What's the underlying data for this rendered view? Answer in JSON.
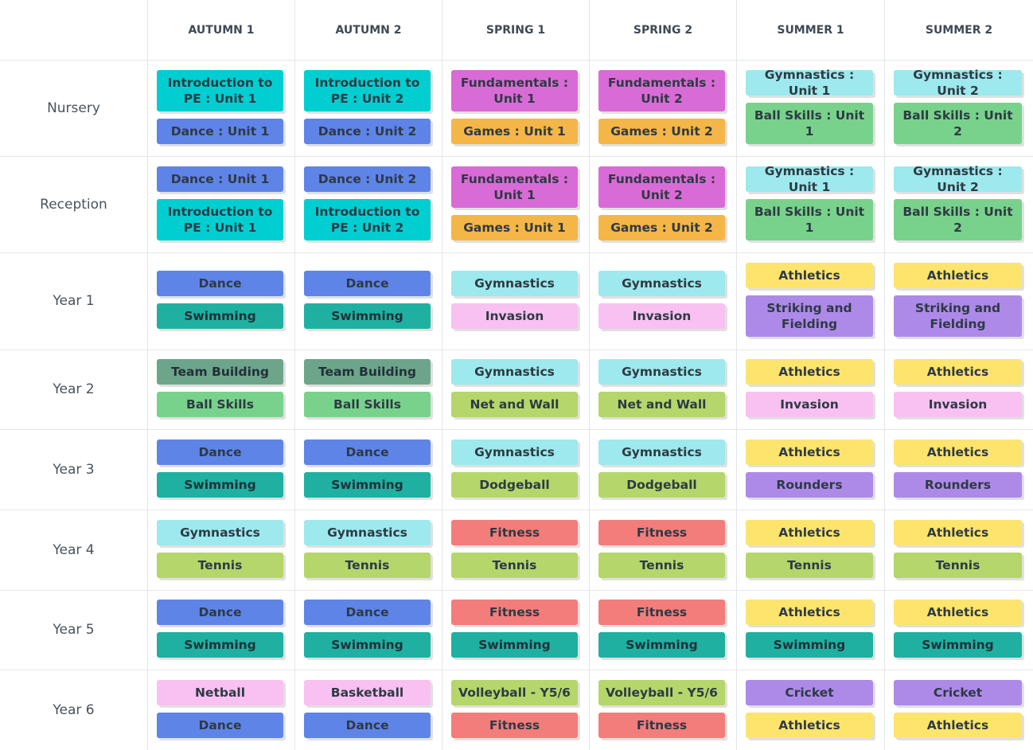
{
  "headers": [
    "AUTUMN 1",
    "AUTUMN 2",
    "SPRING 1",
    "SPRING 2",
    "SUMMER 1",
    "SUMMER 2"
  ],
  "colors": {
    "cyan": "#00ced1",
    "blue": "#5f84e8",
    "magenta": "#d96bd6",
    "orange": "#f4b646",
    "lightcyan": "#9de9ee",
    "green": "#79d28b",
    "teal": "#1fb0a1",
    "pink": "#f8c1f2",
    "yellow": "#fde46c",
    "purple": "#ad8ae8",
    "sage": "#6da58a",
    "lime": "#b5d66a",
    "coral": "#f27d7a"
  },
  "rows": [
    {
      "label": "Nursery",
      "cells": [
        [
          {
            "text": "Introduction to PE : Unit 1",
            "color": "cyan"
          },
          {
            "text": "Dance : Unit 1",
            "color": "blue"
          }
        ],
        [
          {
            "text": "Introduction to PE : Unit 2",
            "color": "cyan"
          },
          {
            "text": "Dance : Unit 2",
            "color": "blue"
          }
        ],
        [
          {
            "text": "Fundamentals : Unit 1",
            "color": "magenta"
          },
          {
            "text": "Games : Unit 1",
            "color": "orange"
          }
        ],
        [
          {
            "text": "Fundamentals : Unit 2",
            "color": "magenta"
          },
          {
            "text": "Games : Unit 2",
            "color": "orange"
          }
        ],
        [
          {
            "text": "Gymnastics : Unit 1",
            "color": "lightcyan"
          },
          {
            "text": "Ball Skills : Unit 1",
            "color": "green"
          }
        ],
        [
          {
            "text": "Gymnastics : Unit 2",
            "color": "lightcyan"
          },
          {
            "text": "Ball Skills : Unit 2",
            "color": "green"
          }
        ]
      ]
    },
    {
      "label": "Reception",
      "cells": [
        [
          {
            "text": "Dance : Unit 1",
            "color": "blue"
          },
          {
            "text": "Introduction to PE : Unit 1",
            "color": "cyan"
          }
        ],
        [
          {
            "text": "Dance : Unit 2",
            "color": "blue"
          },
          {
            "text": "Introduction to PE : Unit 2",
            "color": "cyan"
          }
        ],
        [
          {
            "text": "Fundamentals : Unit 1",
            "color": "magenta"
          },
          {
            "text": "Games : Unit 1",
            "color": "orange"
          }
        ],
        [
          {
            "text": "Fundamentals : Unit 2",
            "color": "magenta"
          },
          {
            "text": "Games : Unit 2",
            "color": "orange"
          }
        ],
        [
          {
            "text": "Gymnastics : Unit 1",
            "color": "lightcyan"
          },
          {
            "text": "Ball Skills : Unit 1",
            "color": "green"
          }
        ],
        [
          {
            "text": "Gymnastics : Unit 2",
            "color": "lightcyan"
          },
          {
            "text": "Ball Skills : Unit 2",
            "color": "green"
          }
        ]
      ]
    },
    {
      "label": "Year 1",
      "cells": [
        [
          {
            "text": "Dance",
            "color": "blue"
          },
          {
            "text": "Swimming",
            "color": "teal"
          }
        ],
        [
          {
            "text": "Dance",
            "color": "blue"
          },
          {
            "text": "Swimming",
            "color": "teal"
          }
        ],
        [
          {
            "text": "Gymnastics",
            "color": "lightcyan"
          },
          {
            "text": "Invasion",
            "color": "pink"
          }
        ],
        [
          {
            "text": "Gymnastics",
            "color": "lightcyan"
          },
          {
            "text": "Invasion",
            "color": "pink"
          }
        ],
        [
          {
            "text": "Athletics",
            "color": "yellow"
          },
          {
            "text": "Striking and Fielding",
            "color": "purple"
          }
        ],
        [
          {
            "text": "Athletics",
            "color": "yellow"
          },
          {
            "text": "Striking and Fielding",
            "color": "purple"
          }
        ]
      ]
    },
    {
      "label": "Year 2",
      "cells": [
        [
          {
            "text": "Team Building",
            "color": "sage"
          },
          {
            "text": "Ball Skills",
            "color": "green"
          }
        ],
        [
          {
            "text": "Team Building",
            "color": "sage"
          },
          {
            "text": "Ball Skills",
            "color": "green"
          }
        ],
        [
          {
            "text": "Gymnastics",
            "color": "lightcyan"
          },
          {
            "text": "Net and Wall",
            "color": "lime"
          }
        ],
        [
          {
            "text": "Gymnastics",
            "color": "lightcyan"
          },
          {
            "text": "Net and Wall",
            "color": "lime"
          }
        ],
        [
          {
            "text": "Athletics",
            "color": "yellow"
          },
          {
            "text": "Invasion",
            "color": "pink"
          }
        ],
        [
          {
            "text": "Athletics",
            "color": "yellow"
          },
          {
            "text": "Invasion",
            "color": "pink"
          }
        ]
      ]
    },
    {
      "label": "Year 3",
      "cells": [
        [
          {
            "text": "Dance",
            "color": "blue"
          },
          {
            "text": "Swimming",
            "color": "teal"
          }
        ],
        [
          {
            "text": "Dance",
            "color": "blue"
          },
          {
            "text": "Swimming",
            "color": "teal"
          }
        ],
        [
          {
            "text": "Gymnastics",
            "color": "lightcyan"
          },
          {
            "text": "Dodgeball",
            "color": "lime"
          }
        ],
        [
          {
            "text": "Gymnastics",
            "color": "lightcyan"
          },
          {
            "text": "Dodgeball",
            "color": "lime"
          }
        ],
        [
          {
            "text": "Athletics",
            "color": "yellow"
          },
          {
            "text": "Rounders",
            "color": "purple"
          }
        ],
        [
          {
            "text": "Athletics",
            "color": "yellow"
          },
          {
            "text": "Rounders",
            "color": "purple"
          }
        ]
      ]
    },
    {
      "label": "Year 4",
      "cells": [
        [
          {
            "text": "Gymnastics",
            "color": "lightcyan"
          },
          {
            "text": "Tennis",
            "color": "lime"
          }
        ],
        [
          {
            "text": "Gymnastics",
            "color": "lightcyan"
          },
          {
            "text": "Tennis",
            "color": "lime"
          }
        ],
        [
          {
            "text": "Fitness",
            "color": "coral"
          },
          {
            "text": "Tennis",
            "color": "lime"
          }
        ],
        [
          {
            "text": "Fitness",
            "color": "coral"
          },
          {
            "text": "Tennis",
            "color": "lime"
          }
        ],
        [
          {
            "text": "Athletics",
            "color": "yellow"
          },
          {
            "text": "Tennis",
            "color": "lime"
          }
        ],
        [
          {
            "text": "Athletics",
            "color": "yellow"
          },
          {
            "text": "Tennis",
            "color": "lime"
          }
        ]
      ]
    },
    {
      "label": "Year 5",
      "cells": [
        [
          {
            "text": "Dance",
            "color": "blue"
          },
          {
            "text": "Swimming",
            "color": "teal"
          }
        ],
        [
          {
            "text": "Dance",
            "color": "blue"
          },
          {
            "text": "Swimming",
            "color": "teal"
          }
        ],
        [
          {
            "text": "Fitness",
            "color": "coral"
          },
          {
            "text": "Swimming",
            "color": "teal"
          }
        ],
        [
          {
            "text": "Fitness",
            "color": "coral"
          },
          {
            "text": "Swimming",
            "color": "teal"
          }
        ],
        [
          {
            "text": "Athletics",
            "color": "yellow"
          },
          {
            "text": "Swimming",
            "color": "teal"
          }
        ],
        [
          {
            "text": "Athletics",
            "color": "yellow"
          },
          {
            "text": "Swimming",
            "color": "teal"
          }
        ]
      ]
    },
    {
      "label": "Year 6",
      "cells": [
        [
          {
            "text": "Netball",
            "color": "pink"
          },
          {
            "text": "Dance",
            "color": "blue"
          }
        ],
        [
          {
            "text": "Basketball",
            "color": "pink"
          },
          {
            "text": "Dance",
            "color": "blue"
          }
        ],
        [
          {
            "text": "Volleyball - Y5/6",
            "color": "lime"
          },
          {
            "text": "Fitness",
            "color": "coral"
          }
        ],
        [
          {
            "text": "Volleyball - Y5/6",
            "color": "lime"
          },
          {
            "text": "Fitness",
            "color": "coral"
          }
        ],
        [
          {
            "text": "Cricket",
            "color": "purple"
          },
          {
            "text": "Athletics",
            "color": "yellow"
          }
        ],
        [
          {
            "text": "Cricket",
            "color": "purple"
          },
          {
            "text": "Athletics",
            "color": "yellow"
          }
        ]
      ]
    }
  ]
}
